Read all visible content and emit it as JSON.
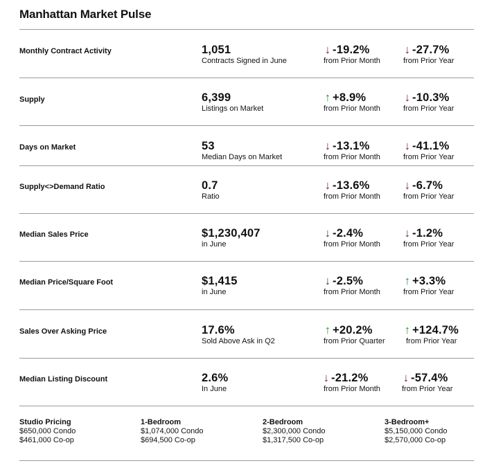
{
  "title": "Manhattan Market Pulse",
  "colors": {
    "down_arrow": "#6d1f34",
    "up_arrow": "#2e8b2e",
    "rule": "#9a9a9a"
  },
  "rows": [
    {
      "label": "Monthly Contract Activity",
      "value": "1,051",
      "sub": "Contracts Signed in June",
      "c1_dir": "down",
      "c1_arrow": "↓",
      "c1_pct": "-19.2%",
      "c1_from": "from Prior Month",
      "c2_dir": "down",
      "c2_arrow": "↓",
      "c2_pct": "-27.7%",
      "c2_from": "from Prior Year"
    },
    {
      "label": "Supply",
      "value": "6,399",
      "sub": "Listings on Market",
      "c1_dir": "up",
      "c1_arrow": "↑",
      "c1_pct": "+8.9%",
      "c1_from": "from Prior Month",
      "c2_dir": "down",
      "c2_arrow": "↓",
      "c2_pct": "-10.3%",
      "c2_from": "from Prior Year"
    },
    {
      "label": "Days on Market",
      "value": "53",
      "sub": "Median Days on Market",
      "c1_dir": "down",
      "c1_arrow": "↓",
      "c1_pct": "-13.1%",
      "c1_from": "from Prior Month",
      "c2_dir": "down",
      "c2_arrow": "↓",
      "c2_pct": "-41.1%",
      "c2_from": "from Prior Year"
    },
    {
      "label": "Supply<>Demand Ratio",
      "value": "0.7",
      "sub": "Ratio",
      "c1_dir": "down",
      "c1_arrow": "↓",
      "c1_pct": "-13.6%",
      "c1_from": "from Prior Month",
      "c2_dir": "down",
      "c2_arrow": "↓",
      "c2_pct": "-6.7%",
      "c2_from": "from Prior Year"
    },
    {
      "label": "Median Sales Price",
      "value": "$1,230,407",
      "sub": "in June",
      "c1_dir": "down",
      "c1_arrow": "↓",
      "c1_pct": "-2.4%",
      "c1_from": "from Prior Month",
      "c2_dir": "down",
      "c2_arrow": "↓",
      "c2_pct": "-1.2%",
      "c2_from": "from Prior Year"
    },
    {
      "label": "Median Price/Square Foot",
      "value": "$1,415",
      "sub": "in June",
      "c1_dir": "down",
      "c1_arrow": "↓",
      "c1_pct": "-2.5%",
      "c1_from": "from Prior Month",
      "c2_dir": "up",
      "c2_arrow": "↑",
      "c2_pct": "+3.3%",
      "c2_from": "from Prior Year"
    },
    {
      "label": "Sales Over Asking Price",
      "value": "17.6%",
      "sub": "Sold Above Ask in Q2",
      "c1_dir": "up",
      "c1_arrow": "↑",
      "c1_pct": "+20.2%",
      "c1_from": "from Prior Quarter",
      "c2_dir": "up",
      "c2_arrow": "↑",
      "c2_pct": "+124.7%",
      "c2_from": "from Prior Year"
    },
    {
      "label": "Median Listing Discount",
      "value": "2.6%",
      "sub": "In June",
      "c1_dir": "down",
      "c1_arrow": "↓",
      "c1_pct": "-21.2%",
      "c1_from": "from Prior Month",
      "c2_dir": "down",
      "c2_arrow": "↓",
      "c2_pct": "-57.4%",
      "c2_from": "from Prior Year"
    }
  ],
  "pricing": [
    {
      "heading": "Studio Pricing",
      "condo": "$650,000 Condo",
      "coop": "$461,000 Co-op"
    },
    {
      "heading": "1-Bedroom",
      "condo": "$1,074,000 Condo",
      "coop": "$694,500 Co-op"
    },
    {
      "heading": "2-Bedroom",
      "condo": "$2,300,000 Condo",
      "coop": "$1,317,500 Co-op"
    },
    {
      "heading": "3-Bedroom+",
      "condo": "$5,150,000 Condo",
      "coop": "$2,570,000 Co-op"
    }
  ]
}
